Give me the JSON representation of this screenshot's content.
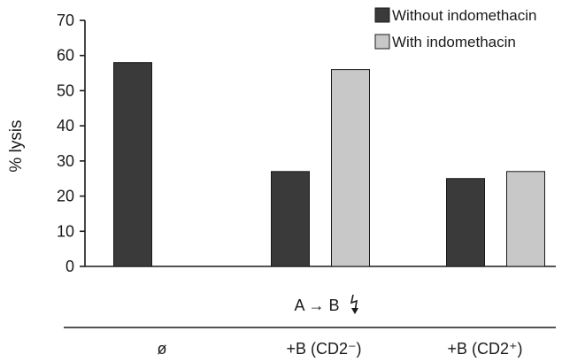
{
  "chart_data": {
    "type": "bar",
    "ylabel": "% lysis",
    "ylim": [
      0,
      70
    ],
    "yticks": [
      0,
      10,
      20,
      30,
      40,
      50,
      60,
      70
    ],
    "series": [
      {
        "name": "Without indomethacin",
        "color": "#3a3a3a",
        "values": [
          58,
          27,
          25
        ]
      },
      {
        "name": "With indomethacin",
        "color": "#c8c8c8",
        "values": [
          null,
          56,
          27
        ]
      }
    ],
    "categories": [
      "ø",
      "+B (CD2⁻)",
      "+B (CD2⁺)"
    ],
    "annotation": "A → B",
    "legend_position": "top-right",
    "grid": false
  }
}
